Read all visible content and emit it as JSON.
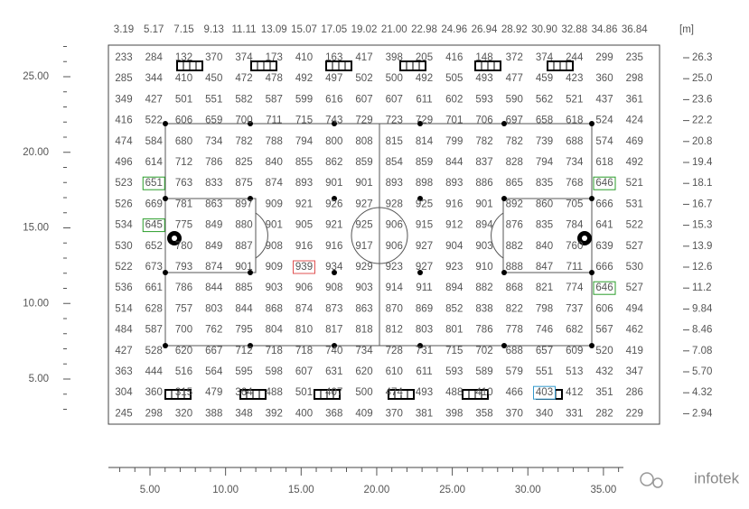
{
  "top_axis": {
    "labels": [
      "3.19",
      "5.17",
      "7.15",
      "9.13",
      "11.11",
      "13.09",
      "15.07",
      "17.05",
      "19.02",
      "21.00",
      "22.98",
      "24.96",
      "26.94",
      "28.92",
      "30.90",
      "32.88",
      "34.86",
      "36.84"
    ],
    "unit": "[m]"
  },
  "right_axis": {
    "labels": [
      "26.3",
      "25.0",
      "23.6",
      "22.2",
      "20.8",
      "19.4",
      "18.1",
      "16.7",
      "15.3",
      "13.9",
      "12.6",
      "11.2",
      "9.84",
      "8.46",
      "7.08",
      "5.70",
      "4.32",
      "2.94"
    ]
  },
  "left_axis": {
    "labels": [
      "25.00",
      "20.00",
      "15.00",
      "10.00",
      "5.00"
    ]
  },
  "bottom_axis": {
    "labels": [
      "5.00",
      "10.00",
      "15.00",
      "20.00",
      "25.00",
      "30.00",
      "35.00"
    ]
  },
  "grid": {
    "rows": [
      [
        233,
        284,
        132,
        370,
        374,
        173,
        410,
        163,
        417,
        398,
        205,
        416,
        148,
        372,
        374,
        244,
        299,
        235
      ],
      [
        285,
        344,
        410,
        450,
        472,
        478,
        492,
        497,
        502,
        500,
        492,
        505,
        493,
        477,
        459,
        423,
        360,
        298
      ],
      [
        349,
        427,
        501,
        551,
        582,
        587,
        599,
        616,
        607,
        607,
        611,
        602,
        593,
        590,
        562,
        521,
        437,
        361
      ],
      [
        416,
        522,
        606,
        659,
        700,
        711,
        715,
        743,
        729,
        723,
        729,
        701,
        706,
        697,
        658,
        618,
        524,
        424
      ],
      [
        474,
        584,
        680,
        734,
        782,
        788,
        794,
        800,
        808,
        815,
        814,
        799,
        782,
        782,
        739,
        688,
        574,
        469
      ],
      [
        496,
        614,
        712,
        786,
        825,
        840,
        855,
        862,
        859,
        854,
        859,
        844,
        837,
        828,
        794,
        734,
        618,
        492
      ],
      [
        523,
        651,
        763,
        833,
        875,
        874,
        893,
        901,
        901,
        893,
        898,
        893,
        886,
        865,
        835,
        768,
        646,
        521
      ],
      [
        526,
        669,
        781,
        863,
        897,
        909,
        921,
        926,
        927,
        928,
        925,
        916,
        901,
        892,
        860,
        705,
        666,
        531
      ],
      [
        534,
        645,
        775,
        849,
        880,
        901,
        905,
        921,
        925,
        906,
        915,
        912,
        894,
        876,
        835,
        784,
        641,
        522
      ],
      [
        530,
        652,
        780,
        849,
        887,
        908,
        916,
        916,
        917,
        906,
        927,
        904,
        903,
        882,
        840,
        760,
        639,
        527
      ],
      [
        522,
        673,
        793,
        874,
        901,
        909,
        939,
        934,
        929,
        923,
        927,
        923,
        910,
        888,
        847,
        711,
        666,
        530
      ],
      [
        536,
        661,
        786,
        844,
        885,
        903,
        906,
        908,
        903,
        914,
        911,
        894,
        882,
        868,
        821,
        774,
        646,
        527
      ],
      [
        514,
        628,
        757,
        803,
        844,
        868,
        874,
        873,
        863,
        870,
        869,
        852,
        838,
        822,
        798,
        737,
        606,
        494
      ],
      [
        484,
        587,
        700,
        762,
        795,
        804,
        810,
        817,
        818,
        812,
        803,
        801,
        786,
        778,
        746,
        682,
        567,
        462
      ],
      [
        427,
        528,
        620,
        667,
        712,
        718,
        718,
        740,
        734,
        728,
        731,
        715,
        702,
        688,
        657,
        609,
        520,
        419
      ],
      [
        363,
        444,
        516,
        564,
        595,
        598,
        607,
        631,
        620,
        610,
        611,
        593,
        589,
        579,
        551,
        513,
        432,
        347
      ],
      [
        304,
        360,
        315,
        479,
        364,
        488,
        501,
        407,
        500,
        474,
        493,
        488,
        410,
        466,
        403,
        412,
        351,
        286
      ],
      [
        245,
        298,
        320,
        388,
        348,
        392,
        400,
        368,
        409,
        370,
        381,
        398,
        358,
        370,
        340,
        331,
        282,
        229
      ]
    ]
  },
  "watermark": "infotek"
}
